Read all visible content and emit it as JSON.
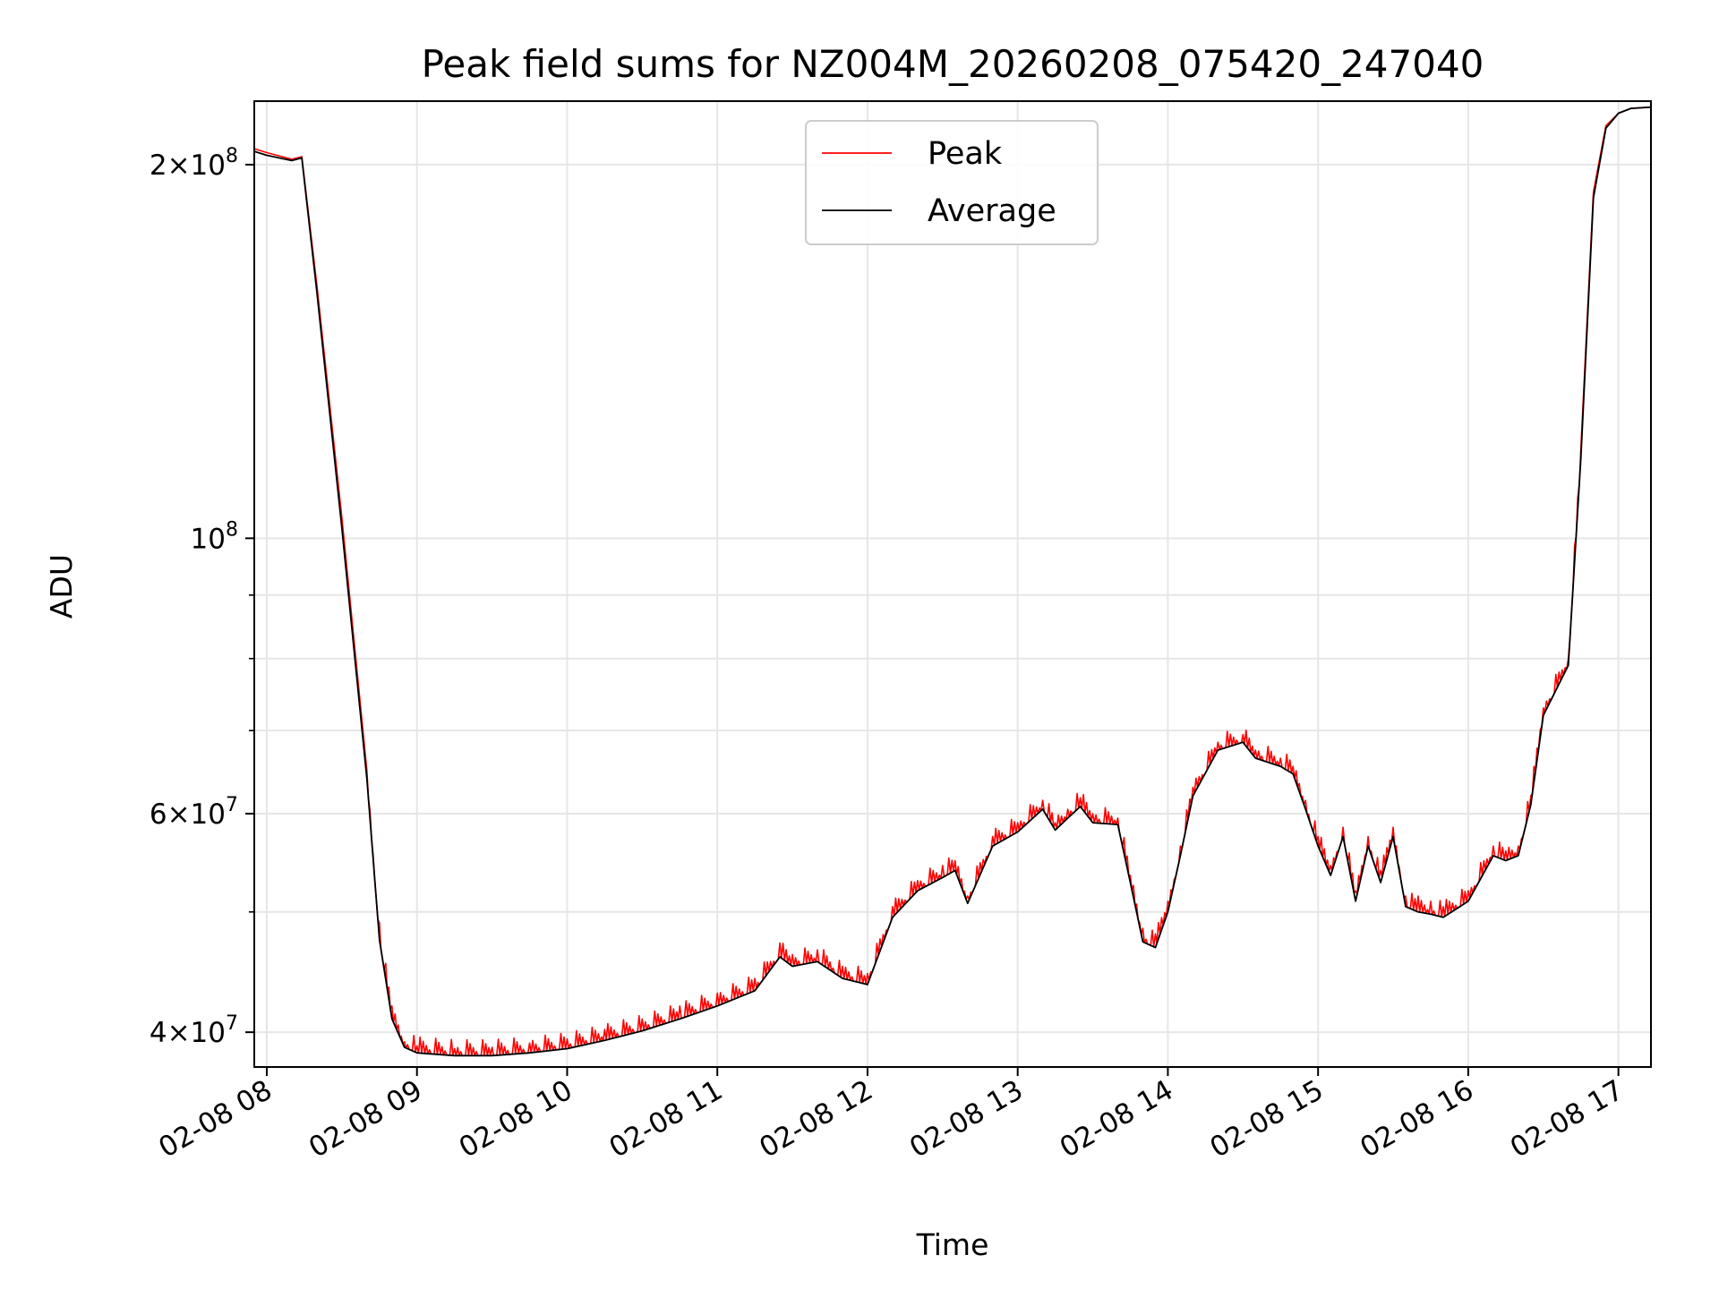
{
  "chart_data": {
    "type": "line",
    "title": "Peak field sums for NZ004M_20260208_075420_247040",
    "xlabel": "Time",
    "ylabel": "ADU",
    "x_unit": "hours (local clock, 02-08)",
    "xlim": [
      "02-08 07:55",
      "02-08 17:13"
    ],
    "ylim": [
      37500000,
      225000000
    ],
    "y_scale": "log",
    "grid": true,
    "legend_position": "top-center",
    "x_ticks": [
      "02-08 08",
      "02-08 09",
      "02-08 10",
      "02-08 11",
      "02-08 12",
      "02-08 13",
      "02-08 14",
      "02-08 15",
      "02-08 16",
      "02-08 17"
    ],
    "y_major_ticks": [
      {
        "value": 40000000,
        "mantissa": "4",
        "exponent": "7"
      },
      {
        "value": 60000000,
        "mantissa": "6",
        "exponent": "7"
      },
      {
        "value": 100000000,
        "mantissa": "",
        "exponent": "8"
      },
      {
        "value": 200000000,
        "mantissa": "2",
        "exponent": "8"
      }
    ],
    "y_minor_ticks": [
      50000000,
      70000000,
      80000000,
      90000000
    ],
    "series": [
      {
        "name": "Peak",
        "color": "#ff0000",
        "note_spikes": "frequent upward spikes of roughly 1-2% above the average curve between 08:35 and 16:45",
        "x": [
          "07:55",
          "08:00",
          "08:10",
          "08:14",
          "08:20",
          "08:30",
          "08:40",
          "08:45",
          "08:50",
          "08:55",
          "09:00",
          "09:15",
          "09:30",
          "09:45",
          "10:00",
          "10:15",
          "10:30",
          "10:45",
          "11:00",
          "11:15",
          "11:25",
          "11:30",
          "11:40",
          "11:50",
          "12:00",
          "12:10",
          "12:20",
          "12:30",
          "12:35",
          "12:40",
          "12:50",
          "13:00",
          "13:10",
          "13:15",
          "13:20",
          "13:25",
          "13:30",
          "13:40",
          "13:45",
          "13:50",
          "13:55",
          "14:00",
          "14:05",
          "14:10",
          "14:20",
          "14:30",
          "14:35",
          "14:45",
          "14:50",
          "14:55",
          "15:00",
          "15:05",
          "15:10",
          "15:15",
          "15:20",
          "15:25",
          "15:30",
          "15:35",
          "15:40",
          "15:45",
          "15:50",
          "16:00",
          "16:10",
          "16:15",
          "16:20",
          "16:25",
          "16:30",
          "16:40",
          "16:45",
          "16:50",
          "16:55",
          "17:00",
          "17:05",
          "17:13"
        ],
        "y": [
          206000000,
          204500000,
          202000000,
          203000000,
          160000000,
          104000000,
          65000000,
          49000000,
          42000000,
          39300000,
          39000000,
          38800000,
          38900000,
          39200000,
          39500000,
          40200000,
          41000000,
          42000000,
          43000000,
          44200000,
          47200000,
          46200000,
          46600000,
          45200000,
          44600000,
          50500000,
          53000000,
          54500000,
          55000000,
          51500000,
          57500000,
          59000000,
          61500000,
          59000000,
          60500000,
          61800000,
          60000000,
          59500000,
          53500000,
          48500000,
          48000000,
          51000000,
          56500000,
          63000000,
          68500000,
          69500000,
          67500000,
          66500000,
          65500000,
          61500000,
          57500000,
          54500000,
          58500000,
          52000000,
          57500000,
          54000000,
          58500000,
          51500000,
          51500000,
          51000000,
          50500000,
          52000000,
          56500000,
          56000000,
          56500000,
          62000000,
          73000000,
          80000000,
          118000000,
          190000000,
          215000000,
          220000000,
          222000000,
          222500000
        ]
      },
      {
        "name": "Average",
        "color": "#000000",
        "x": [
          "07:55",
          "08:00",
          "08:10",
          "08:14",
          "08:20",
          "08:30",
          "08:40",
          "08:45",
          "08:50",
          "08:55",
          "09:00",
          "09:15",
          "09:30",
          "09:45",
          "10:00",
          "10:15",
          "10:30",
          "10:45",
          "11:00",
          "11:15",
          "11:25",
          "11:30",
          "11:40",
          "11:50",
          "12:00",
          "12:10",
          "12:20",
          "12:30",
          "12:35",
          "12:40",
          "12:50",
          "13:00",
          "13:10",
          "13:15",
          "13:20",
          "13:25",
          "13:30",
          "13:40",
          "13:45",
          "13:50",
          "13:55",
          "14:00",
          "14:05",
          "14:10",
          "14:20",
          "14:30",
          "14:35",
          "14:45",
          "14:50",
          "14:55",
          "15:00",
          "15:05",
          "15:10",
          "15:15",
          "15:20",
          "15:25",
          "15:30",
          "15:35",
          "15:40",
          "15:45",
          "15:50",
          "16:00",
          "16:10",
          "16:15",
          "16:20",
          "16:25",
          "16:30",
          "16:40",
          "16:45",
          "16:50",
          "16:55",
          "17:00",
          "17:05",
          "17:13"
        ],
        "y": [
          205000000,
          203500000,
          201500000,
          202500000,
          158000000,
          102000000,
          64000000,
          47500000,
          41000000,
          38900000,
          38500000,
          38300000,
          38300000,
          38500000,
          38800000,
          39400000,
          40100000,
          41000000,
          42000000,
          43200000,
          46000000,
          45200000,
          45600000,
          44200000,
          43700000,
          49500000,
          52000000,
          53300000,
          54000000,
          50800000,
          56500000,
          58000000,
          60500000,
          58200000,
          59500000,
          60800000,
          59000000,
          58800000,
          52800000,
          47300000,
          46800000,
          50000000,
          55500000,
          62000000,
          67500000,
          68500000,
          66500000,
          65500000,
          64600000,
          60500000,
          56500000,
          53500000,
          57500000,
          51000000,
          56500000,
          52800000,
          57500000,
          50500000,
          50000000,
          49800000,
          49500000,
          51000000,
          55500000,
          55000000,
          55500000,
          61000000,
          72000000,
          79000000,
          116000000,
          188000000,
          214000000,
          220000000,
          222000000,
          222500000
        ]
      }
    ]
  }
}
